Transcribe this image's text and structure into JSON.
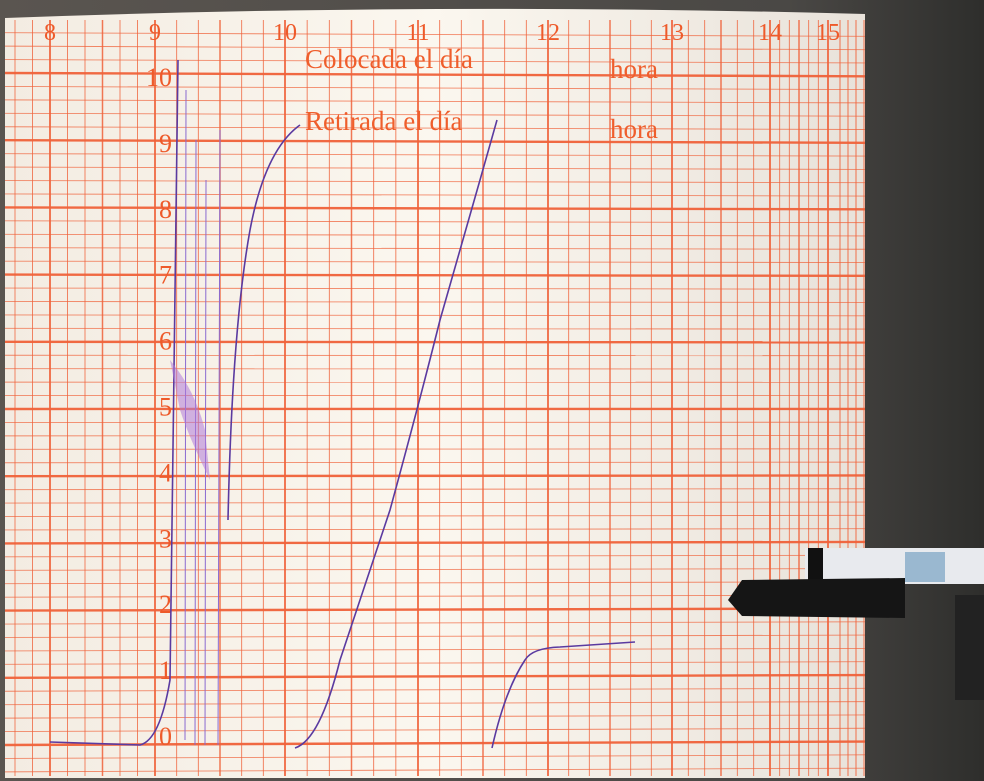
{
  "hour_labels": [
    "8",
    "9",
    "10",
    "11",
    "12",
    "13",
    "14",
    "15"
  ],
  "scale_labels": [
    "10",
    "9",
    "8",
    "7",
    "6",
    "5",
    "4",
    "3",
    "2",
    "1",
    "0"
  ],
  "form": {
    "placed": "Colocada el día",
    "placed_hour": "hora",
    "removed": "Retirada  el día",
    "removed_hour": "hora"
  }
}
